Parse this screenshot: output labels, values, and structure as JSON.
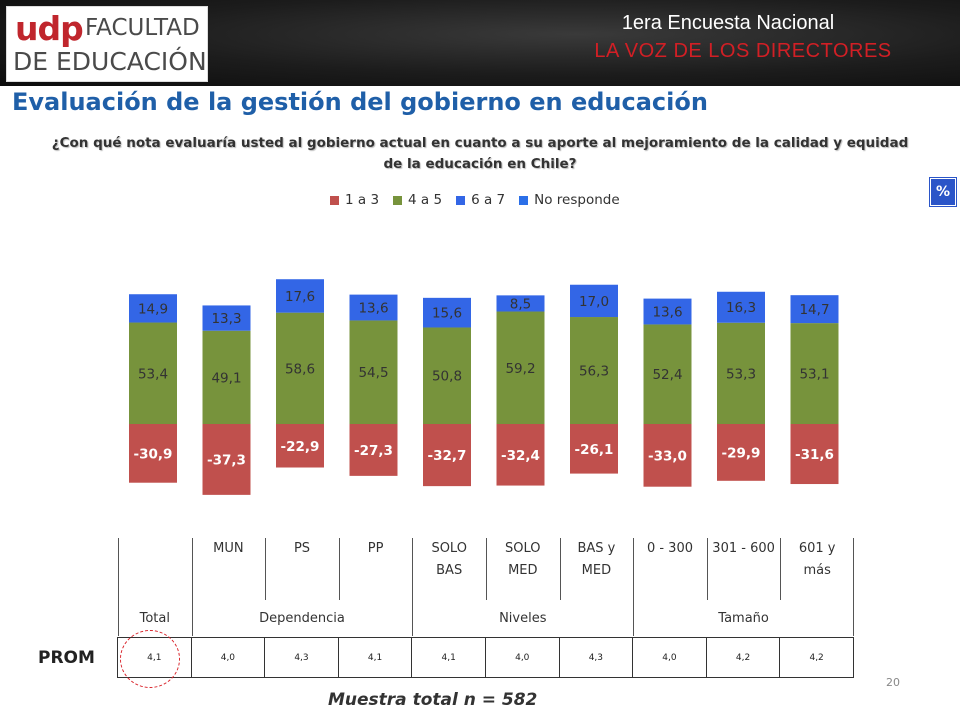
{
  "header": {
    "logo_udp": "udp",
    "logo_line1": "FACULTAD",
    "logo_line2": "DE EDUCACIÓN",
    "survey_title": "1era Encuesta Nacional",
    "survey_subtitle": "LA VOZ DE LOS DIRECTORES"
  },
  "main_title": "Evaluación de la gestión del gobierno en educación",
  "question_line1": "¿Con qué nota evaluaría usted al gobierno actual en cuanto a su aporte al mejoramiento de la calidad y equidad",
  "question_line2": "de la educación en Chile?",
  "pct_badge": "%",
  "legend": [
    {
      "label": "1 a 3",
      "color": "#c0504d"
    },
    {
      "label": "4 a 5",
      "color": "#77933c"
    },
    {
      "label": "6 a 7",
      "color": "#3366e6"
    },
    {
      "label": "No responde",
      "color": "#2b6fe8"
    }
  ],
  "chart_data": {
    "type": "bar",
    "stacked": "diverging",
    "categories": [
      "Total",
      "MUN",
      "PS",
      "PP",
      "SOLO BAS",
      "SOLO MED",
      "BAS y MED",
      "0 - 300",
      "301 - 600",
      "601 y más"
    ],
    "series": [
      {
        "name": "1 a 3",
        "color": "#c0504d",
        "values": [
          -30.9,
          -37.3,
          -22.9,
          -27.3,
          -32.7,
          -32.4,
          -26.1,
          -33.0,
          -29.9,
          -31.6
        ],
        "labels": [
          "-30,9",
          "-37,3",
          "-22,9",
          "-27,3",
          "-32,7",
          "-32,4",
          "-26,1",
          "-33,0",
          "-29,9",
          "-31,6"
        ]
      },
      {
        "name": "4 a 5",
        "color": "#77933c",
        "values": [
          53.4,
          49.1,
          58.6,
          54.5,
          50.8,
          59.2,
          56.3,
          52.4,
          53.3,
          53.1
        ],
        "labels": [
          "53,4",
          "49,1",
          "58,6",
          "54,5",
          "50,8",
          "59,2",
          "56,3",
          "52,4",
          "53,3",
          "53,1"
        ]
      },
      {
        "name": "6 a 7",
        "color": "#3366e6",
        "values": [
          14.9,
          13.3,
          17.6,
          13.6,
          15.6,
          8.5,
          17.0,
          13.6,
          16.3,
          14.7
        ],
        "labels": [
          "14,9",
          "13,3",
          "17,6",
          "13,6",
          "15,6",
          "8,5",
          "17,0",
          "13,6",
          "16,3",
          "14,7"
        ]
      }
    ],
    "grid": false,
    "legend_position": "top"
  },
  "table": {
    "columns": [
      "",
      "MUN",
      "PS",
      "PP",
      "SOLO\nBAS",
      "SOLO\nMED",
      "BAS y\nMED",
      "0 - 300",
      "301 - 600",
      "601 y\nmás"
    ],
    "groups": [
      {
        "label": "Total",
        "span": 1
      },
      {
        "label": "Dependencia",
        "span": 3
      },
      {
        "label": "Niveles",
        "span": 3
      },
      {
        "label": "Tamaño",
        "span": 3
      }
    ]
  },
  "prom": {
    "label": "PROM",
    "values": [
      "4,1",
      "4,0",
      "4,3",
      "4,1",
      "4,1",
      "4,0",
      "4,3",
      "4,0",
      "4,2",
      "4,2"
    ]
  },
  "sample_text": "Muestra total n = 582",
  "page_number": "20"
}
